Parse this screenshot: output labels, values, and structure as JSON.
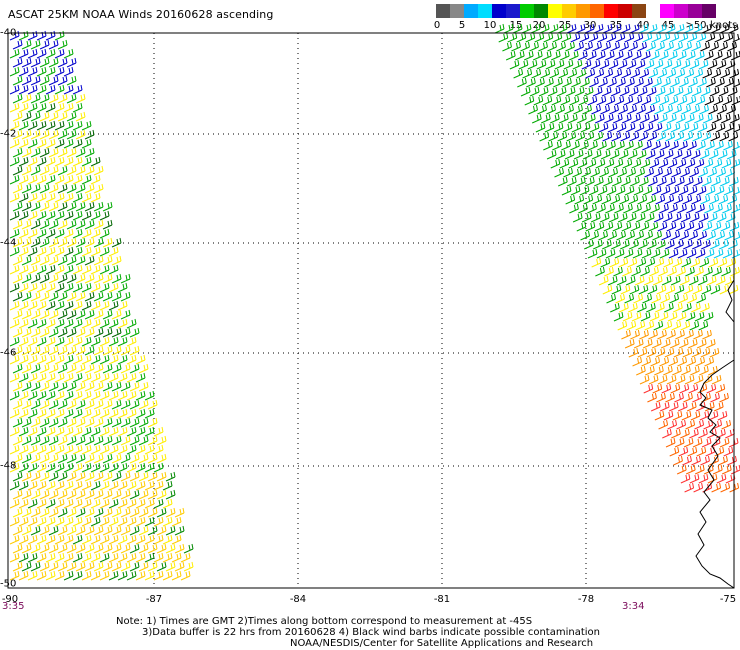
{
  "title": "ASCAT 25KM NOAA Winds 20160628 ascending",
  "legend": {
    "colors": [
      "#555555",
      "#888888",
      "#00aaff",
      "#00ddff",
      "#0000cc",
      "#1a1acc",
      "#00cc00",
      "#008800",
      "#ffff00",
      "#ffcc00",
      "#ff9900",
      "#ff6600",
      "#ff0000",
      "#cc0000",
      "#8b4513",
      "#ffffff",
      "#ff00ff",
      "#cc00cc",
      "#990099",
      "#660066"
    ],
    "ticks": [
      "0",
      "5",
      "10",
      "15",
      "20",
      "25",
      "30",
      "35",
      "40",
      "45",
      ">50"
    ],
    "unit": "knots"
  },
  "axes": {
    "lon_labels": [
      "-90",
      "-87",
      "-84",
      "-81",
      "-78",
      "-75"
    ],
    "lat_labels": [
      "-40",
      "-42",
      "-44",
      "-46",
      "-48",
      "-50"
    ]
  },
  "times": {
    "left": "3:35",
    "right": "3:34"
  },
  "notes": {
    "line1": "Note: 1) Times are GMT 2)Times along bottom correspond to measurement at -45S",
    "line2": "3)Data buffer is 22 hrs from 20160628 4) Black wind barbs indicate possible contamination",
    "line3": "NOAA/NESDIS/Center for Satellite Applications and Research"
  }
}
